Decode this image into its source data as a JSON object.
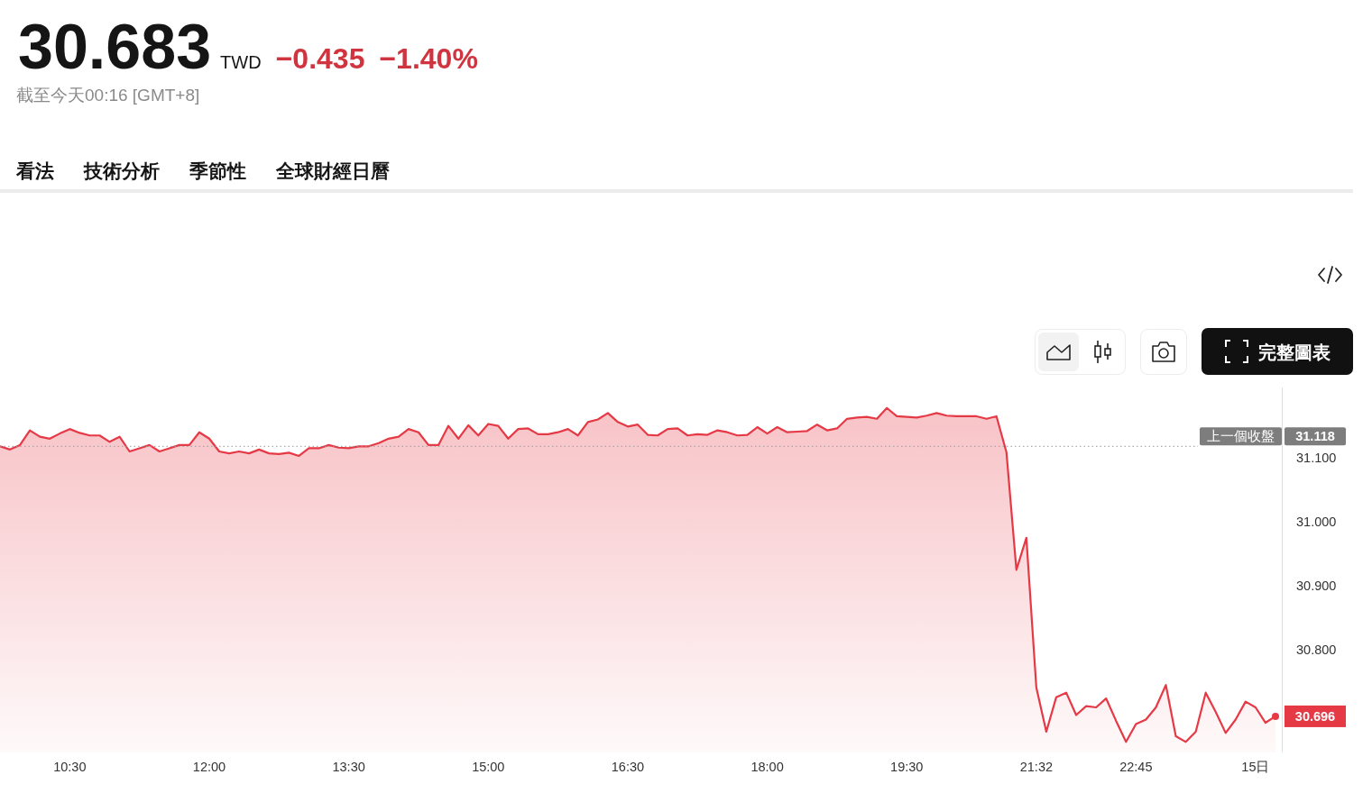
{
  "chart_data": {
    "type": "area",
    "title": "30.683",
    "subtitle": "截至今天00:16 [GMT+8]",
    "annotations": [
      "TWD",
      "−0.435",
      "−1.40%",
      "看法",
      "技術分析",
      "季節性",
      "全球財經日曆",
      "完整圖表",
      "31.118"
    ],
    "categories": [
      null,
      null,
      null,
      null,
      null,
      null,
      null,
      "10:30",
      null,
      null,
      null,
      null,
      null,
      null,
      null,
      null,
      null,
      null,
      null,
      null,
      null,
      "12:00",
      null,
      null,
      null,
      null,
      null,
      null,
      null,
      null,
      null,
      null,
      null,
      null,
      null,
      "13:30",
      null,
      null,
      null,
      null,
      null,
      null,
      null,
      null,
      null,
      null,
      null,
      null,
      null,
      "15:00",
      null,
      null,
      null,
      null,
      null,
      null,
      null,
      null,
      null,
      null,
      null,
      null,
      null,
      "16:30",
      null,
      null,
      null,
      null,
      null,
      null,
      null,
      null,
      null,
      null,
      null,
      null,
      null,
      "18:00",
      null,
      null,
      null,
      null,
      null,
      null,
      null,
      null,
      null,
      null,
      null,
      null,
      null,
      "19:30",
      null,
      null,
      null,
      null,
      null,
      null,
      null,
      null,
      null,
      null,
      null,
      null,
      "21:32",
      null,
      null,
      null,
      null,
      null,
      null,
      null,
      null,
      null,
      "22:45",
      null,
      null,
      null,
      null,
      null,
      null,
      null,
      null,
      null,
      null,
      null,
      "15日",
      null,
      null
    ],
    "series": [
      {
        "color": "#e63946",
        "values": [
          31.118,
          31.113,
          31.12,
          31.143,
          31.133,
          31.13,
          31.138,
          31.145,
          31.139,
          31.135,
          31.135,
          31.125,
          31.133,
          31.11,
          31.115,
          31.12,
          31.11,
          31.115,
          31.12,
          31.12,
          31.14,
          31.13,
          31.11,
          31.107,
          31.11,
          31.107,
          31.113,
          31.107,
          31.106,
          31.108,
          31.103,
          31.115,
          31.115,
          31.12,
          31.116,
          31.115,
          31.118,
          31.118,
          31.123,
          31.13,
          31.133,
          31.145,
          31.14,
          31.12,
          31.12,
          31.15,
          31.13,
          31.151,
          31.135,
          31.153,
          31.15,
          31.13,
          31.145,
          31.146,
          31.137,
          31.137,
          31.14,
          31.145,
          31.135,
          31.156,
          31.16,
          31.17,
          31.156,
          31.149,
          31.152,
          31.136,
          31.135,
          31.145,
          31.146,
          31.135,
          31.137,
          31.136,
          31.143,
          31.14,
          31.135,
          31.136,
          31.148,
          31.138,
          31.148,
          31.14,
          31.141,
          31.142,
          31.152,
          31.143,
          31.146,
          31.161,
          31.163,
          31.164,
          31.161,
          31.178,
          31.165,
          31.164,
          31.163,
          31.166,
          31.17,
          31.166,
          31.165,
          31.165,
          31.165,
          31.161,
          31.165,
          31.109,
          30.925,
          30.975,
          30.741,
          30.672,
          30.726,
          30.733,
          30.698,
          30.712,
          30.71,
          30.724,
          30.689,
          30.656,
          30.684,
          30.691,
          30.71,
          30.745,
          30.665,
          30.656,
          30.672,
          30.733,
          30.703,
          30.67,
          30.691,
          30.719,
          30.71,
          30.686,
          30.696
        ],
        "value_labels": [
          null,
          null,
          null,
          null,
          null,
          null,
          null,
          null,
          null,
          null,
          null,
          null,
          null,
          null,
          null,
          null,
          null,
          null,
          null,
          null,
          null,
          null,
          null,
          null,
          null,
          null,
          null,
          null,
          null,
          null,
          null,
          null,
          null,
          null,
          null,
          null,
          null,
          null,
          null,
          null,
          null,
          null,
          null,
          null,
          null,
          null,
          null,
          null,
          null,
          null,
          null,
          null,
          null,
          null,
          null,
          null,
          null,
          null,
          null,
          null,
          null,
          null,
          null,
          null,
          null,
          null,
          null,
          null,
          null,
          null,
          null,
          null,
          null,
          null,
          null,
          null,
          null,
          null,
          null,
          null,
          null,
          null,
          null,
          null,
          null,
          null,
          null,
          null,
          null,
          null,
          null,
          null,
          null,
          null,
          null,
          null,
          null,
          null,
          null,
          null,
          null,
          null,
          null,
          null,
          null,
          null,
          null,
          null,
          null,
          null,
          null,
          null,
          null,
          null,
          null,
          null,
          null,
          null,
          null,
          null,
          null,
          null,
          null,
          null,
          null,
          null,
          null,
          null,
          "30.696"
        ]
      }
    ],
    "ylim": [
      30.64,
      31.21
    ],
    "yticks": [
      {
        "value": 30.8,
        "label": "30.800"
      },
      {
        "value": 30.9,
        "label": "30.900"
      },
      {
        "value": 31.0,
        "label": "31.000"
      },
      {
        "value": 31.1,
        "label": "31.100"
      }
    ],
    "ref_lines": [
      {
        "axis": "y",
        "value": 31.118,
        "label": "上一個收盤",
        "color": "#9a9a9a",
        "line_style": "dotted"
      }
    ]
  }
}
